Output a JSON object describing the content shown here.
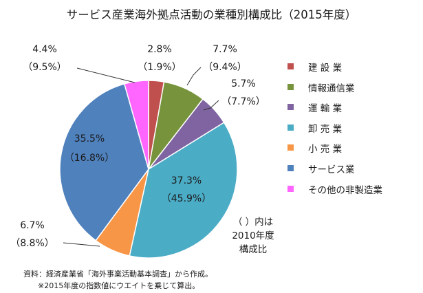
{
  "title": "サービス産業海外拠点活動の業種別構成比（2015年度）",
  "chart_data": {
    "type": "pie",
    "title": "サービス産業海外拠点活動の業種別構成比（2015年度）",
    "series_names": [
      "2015年度",
      "2010年度"
    ],
    "slices": [
      {
        "label": "建設業",
        "value": 2.8,
        "value_label": "2.8%",
        "value_2010": 1.9,
        "value_2010_label": "（1.9%）",
        "color": "#c0504d"
      },
      {
        "label": "情報通信業",
        "value": 7.7,
        "value_label": "7.7%",
        "value_2010": 9.4,
        "value_2010_label": "（9.4%）",
        "color": "#77933c"
      },
      {
        "label": "運輸業",
        "value": 5.7,
        "value_label": "5.7%",
        "value_2010": 7.7,
        "value_2010_label": "（7.7%）",
        "color": "#8064a2"
      },
      {
        "label": "卸売業",
        "value": 37.3,
        "value_label": "37.3%",
        "value_2010": 45.9,
        "value_2010_label": "（45.9%）",
        "color": "#4bacc6"
      },
      {
        "label": "小売業",
        "value": 6.7,
        "value_label": "6.7%",
        "value_2010": 8.8,
        "value_2010_label": "（8.8%）",
        "color": "#f79646"
      },
      {
        "label": "サービス業",
        "value": 35.5,
        "value_label": "35.5%",
        "value_2010": 16.8,
        "value_2010_label": "（16.8%）",
        "color": "#4f81bd"
      },
      {
        "label": "その他の非製造業",
        "value": 4.4,
        "value_label": "4.4%",
        "value_2010": 9.5,
        "value_2010_label": "（9.5%）",
        "color": "#ff66ff"
      }
    ],
    "legend_position": "right",
    "start_angle_deg": 0,
    "direction": "clockwise"
  },
  "legend_items": [
    {
      "label": "建 設 業",
      "color": "#c0504d"
    },
    {
      "label": "情報通信業",
      "color": "#77933c"
    },
    {
      "label": "運 輸 業",
      "color": "#8064a2"
    },
    {
      "label": "卸 売 業",
      "color": "#4bacc6"
    },
    {
      "label": "小 売 業",
      "color": "#f79646"
    },
    {
      "label": "サービス業",
      "color": "#4f81bd"
    },
    {
      "label": "その他の非製造業",
      "color": "#ff66ff"
    }
  ],
  "paren_note": [
    "（ ）内は",
    "2010年度",
    "構成比"
  ],
  "source_note": "資料：経済産業省「海外事業活動基本調査」から作成。",
  "footnote": "※2015年度の指数値にウエイトを乗じて算出。"
}
